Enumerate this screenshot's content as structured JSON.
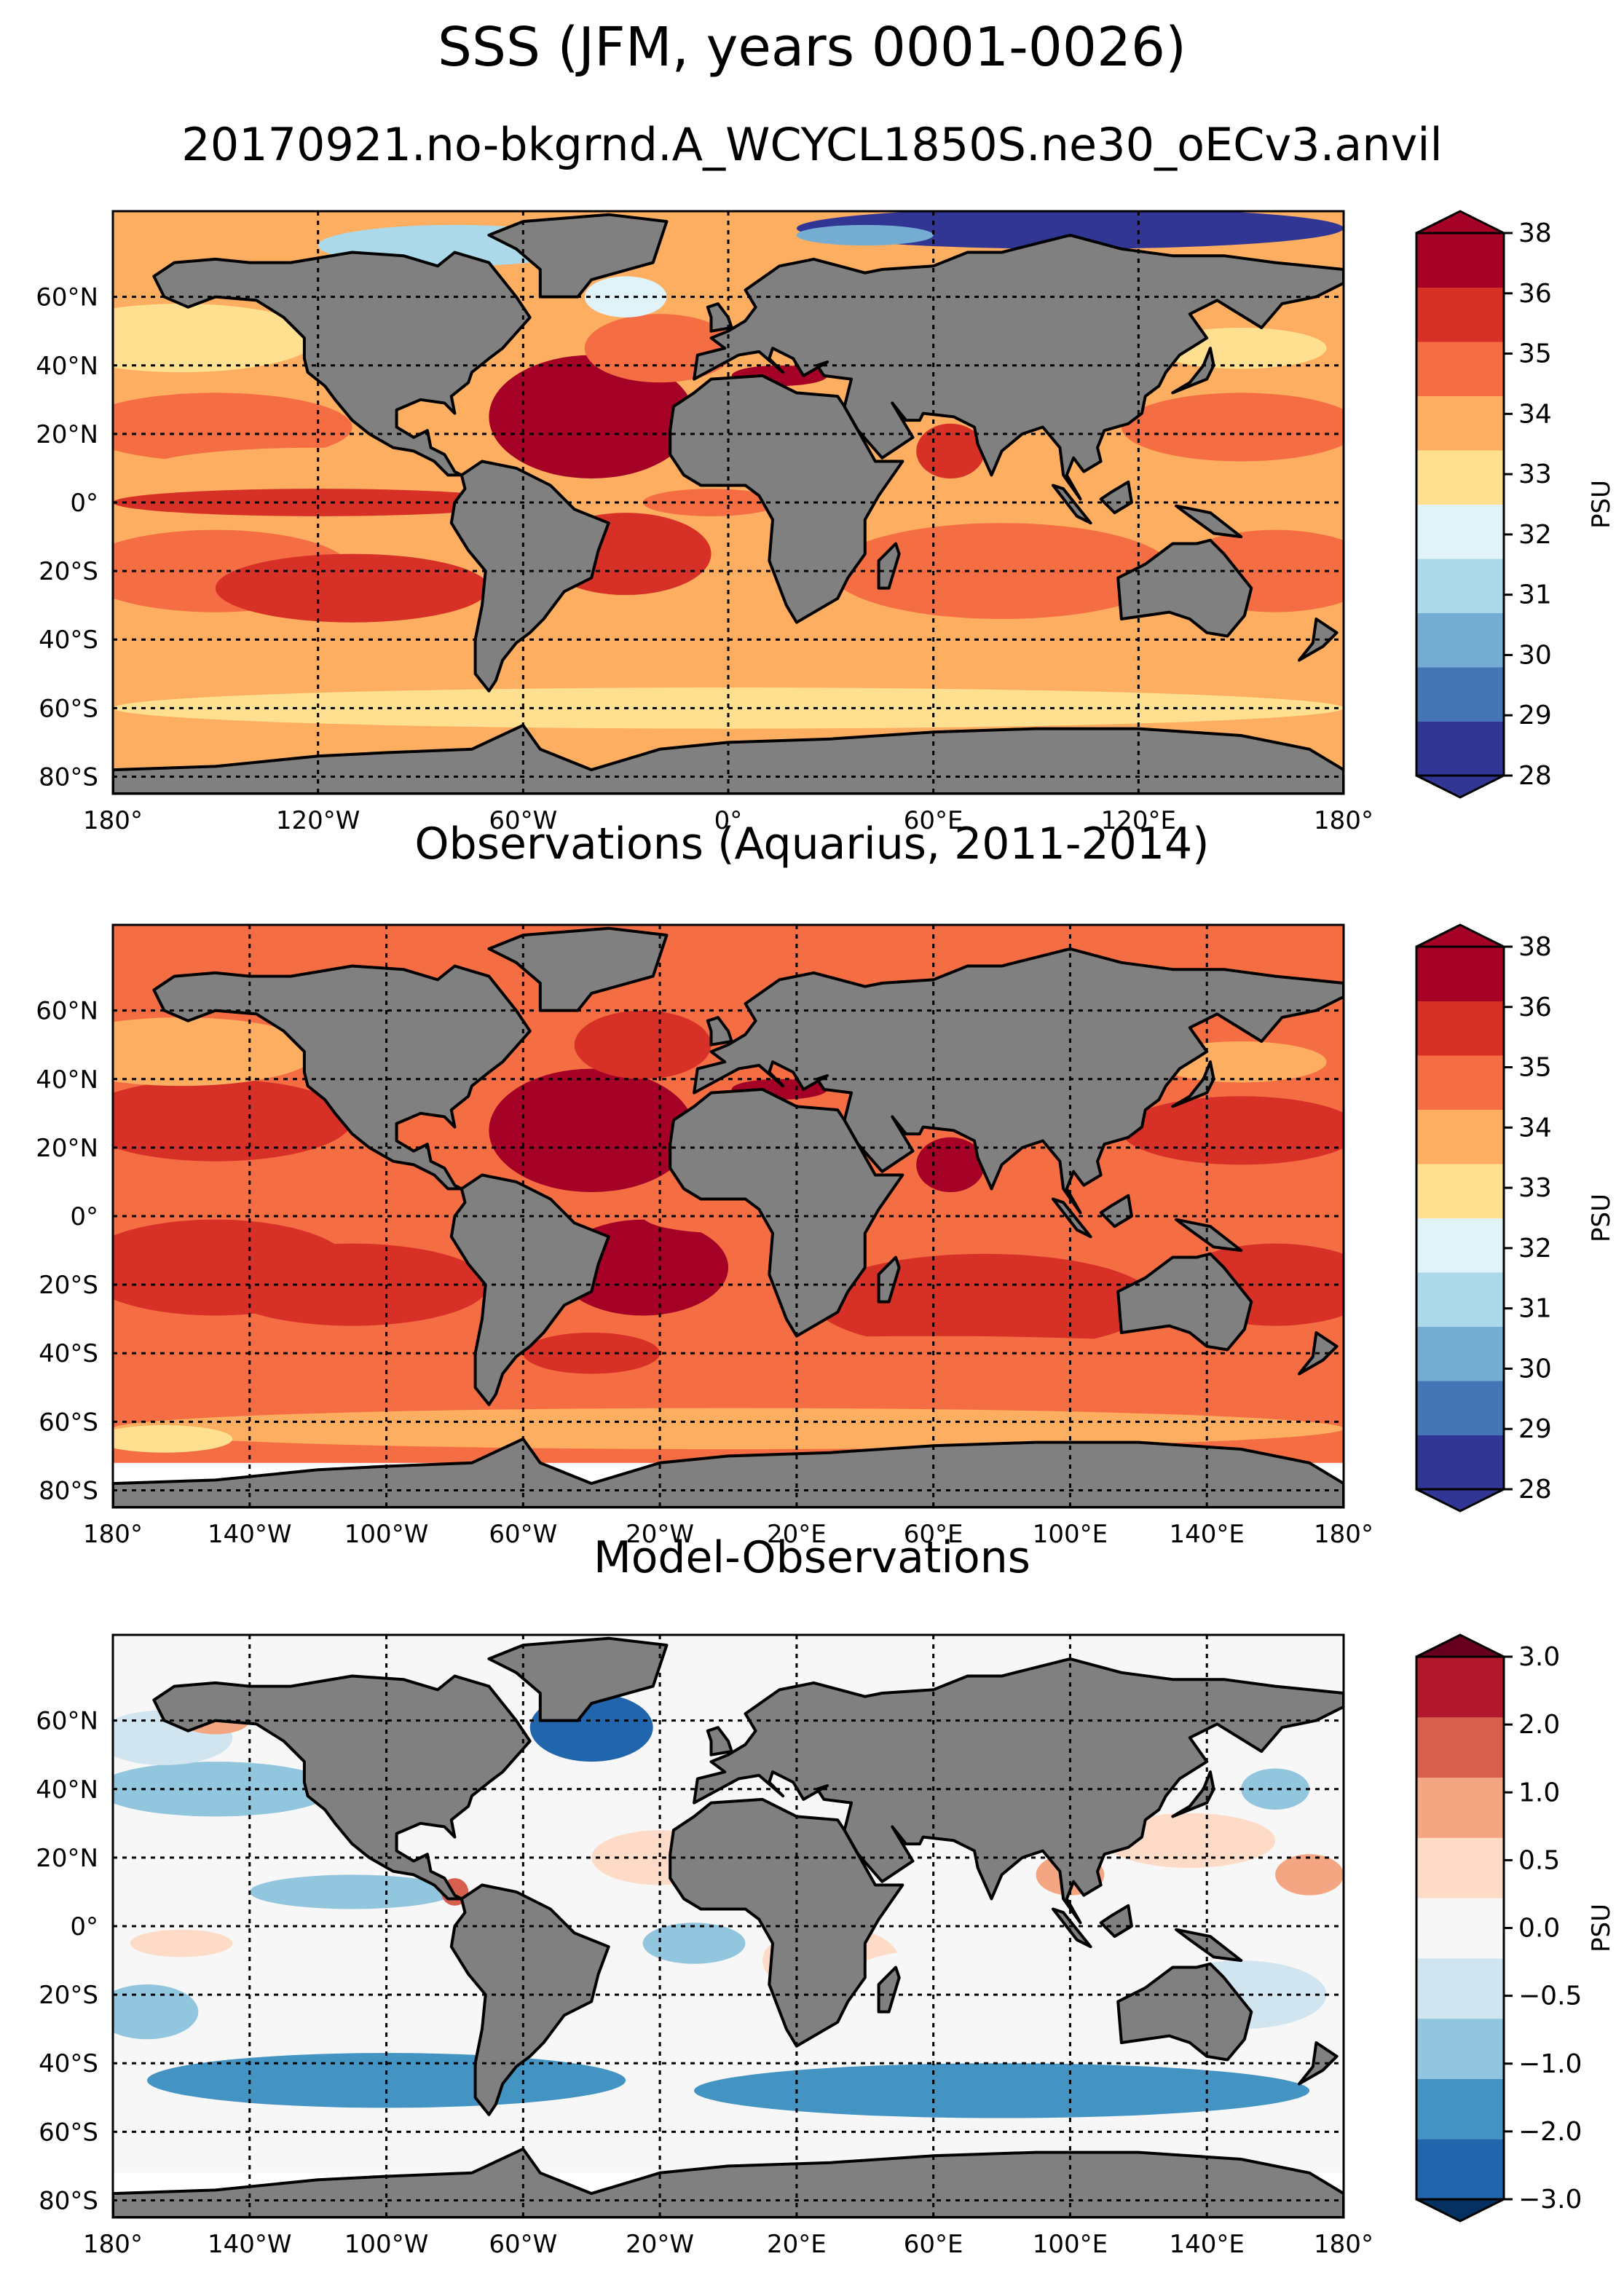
{
  "figure": {
    "title": "SSS (JFM, years 0001-0026)",
    "subtitle": "20170921.no-bkgrnd.A_WCYCL1850S.ne30_oECv3.anvil"
  },
  "panels": [
    {
      "id": "model",
      "title": "",
      "lat_labels": [
        "60°N",
        "40°N",
        "20°N",
        "0°",
        "20°S",
        "40°S",
        "60°S",
        "80°S"
      ],
      "lon_labels": [
        "180°",
        "120°W",
        "60°W",
        "0°",
        "60°E",
        "120°E",
        "180°"
      ],
      "colorbar": {
        "label": "PSU",
        "ticks": [
          "28",
          "29",
          "30",
          "31",
          "32",
          "33",
          "34",
          "35",
          "36",
          "38"
        ],
        "colors": [
          "#313695",
          "#4575b4",
          "#74add1",
          "#abd9e9",
          "#e0f3f8",
          "#fee090",
          "#fdae61",
          "#f46d43",
          "#d73027",
          "#a50026"
        ],
        "extend": "both"
      }
    },
    {
      "id": "obs",
      "title": "Observations (Aquarius, 2011-2014)",
      "lat_labels": [
        "60°N",
        "40°N",
        "20°N",
        "0°",
        "20°S",
        "40°S",
        "60°S",
        "80°S"
      ],
      "lon_labels": [
        "180°",
        "140°W",
        "100°W",
        "60°W",
        "20°W",
        "20°E",
        "60°E",
        "100°E",
        "140°E",
        "180°"
      ],
      "colorbar": {
        "label": "PSU",
        "ticks": [
          "28",
          "29",
          "30",
          "31",
          "32",
          "33",
          "34",
          "35",
          "36",
          "38"
        ],
        "colors": [
          "#313695",
          "#4575b4",
          "#74add1",
          "#abd9e9",
          "#e0f3f8",
          "#fee090",
          "#fdae61",
          "#f46d43",
          "#d73027",
          "#a50026"
        ],
        "extend": "both"
      }
    },
    {
      "id": "diff",
      "title": "Model-Observations",
      "lat_labels": [
        "60°N",
        "40°N",
        "20°N",
        "0°",
        "20°S",
        "40°S",
        "60°S",
        "80°S"
      ],
      "lon_labels": [
        "180°",
        "140°W",
        "100°W",
        "60°W",
        "20°W",
        "20°E",
        "60°E",
        "100°E",
        "140°E",
        "180°"
      ],
      "colorbar": {
        "label": "PSU",
        "ticks": [
          "−3.0",
          "−2.0",
          "−1.0",
          "−0.5",
          "0.0",
          "0.5",
          "1.0",
          "2.0",
          "3.0"
        ],
        "colors": [
          "#2166ac",
          "#4393c3",
          "#92c5de",
          "#d1e5f0",
          "#f7f7f7",
          "#fddbc7",
          "#f4a582",
          "#d6604d",
          "#b2182b"
        ],
        "end_colors": [
          "#053061",
          "#67001f"
        ],
        "extend": "both"
      }
    }
  ],
  "land_color": "#808080"
}
